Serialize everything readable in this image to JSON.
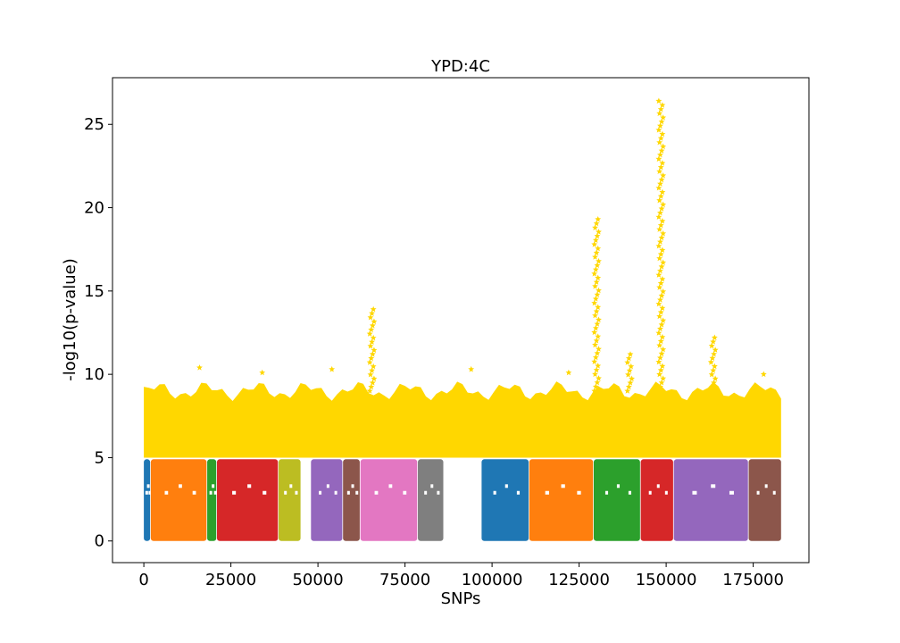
{
  "chart_data": {
    "type": "scatter",
    "title": "YPD:4C",
    "xlabel": "SNPs",
    "ylabel": "-log10(p-value)",
    "xlim": [
      -9000,
      191000
    ],
    "ylim": [
      -1.3,
      27.8
    ],
    "x_ticks": [
      0,
      25000,
      50000,
      75000,
      100000,
      125000,
      150000,
      175000
    ],
    "y_ticks": [
      0,
      5,
      10,
      15,
      20,
      25
    ],
    "grid": false,
    "legend": "none",
    "significance_threshold": 5,
    "highlight_color": "#ffd700",
    "segments": [
      {
        "start": 0,
        "end": 1800,
        "color": "#1f77b4"
      },
      {
        "start": 2000,
        "end": 18000,
        "color": "#ff7f0e"
      },
      {
        "start": 18200,
        "end": 20800,
        "color": "#2ca02c"
      },
      {
        "start": 21000,
        "end": 38500,
        "color": "#d62728"
      },
      {
        "start": 38700,
        "end": 45000,
        "color": "#bcbd22"
      },
      {
        "start": 48000,
        "end": 57000,
        "color": "#9467bd"
      },
      {
        "start": 57200,
        "end": 62000,
        "color": "#8c564b"
      },
      {
        "start": 62200,
        "end": 78500,
        "color": "#e377c2"
      },
      {
        "start": 78700,
        "end": 86000,
        "color": "#7f7f7f"
      },
      {
        "start": 97000,
        "end": 110500,
        "color": "#1f77b4"
      },
      {
        "start": 110700,
        "end": 129000,
        "color": "#ff7f0e"
      },
      {
        "start": 129200,
        "end": 142500,
        "color": "#2ca02c"
      },
      {
        "start": 142700,
        "end": 152000,
        "color": "#d62728"
      },
      {
        "start": 152200,
        "end": 173500,
        "color": "#9467bd"
      },
      {
        "start": 173700,
        "end": 183000,
        "color": "#8c564b"
      }
    ],
    "peaks": [
      {
        "x": 65500,
        "y": 13.9
      },
      {
        "x": 130000,
        "y": 19.3
      },
      {
        "x": 139500,
        "y": 11.2
      },
      {
        "x": 148500,
        "y": 26.4
      },
      {
        "x": 163500,
        "y": 12.2
      }
    ],
    "notable_points": [
      {
        "x": 16000,
        "y": 10.4
      },
      {
        "x": 34000,
        "y": 10.1
      },
      {
        "x": 54000,
        "y": 10.3
      },
      {
        "x": 94000,
        "y": 10.3
      },
      {
        "x": 122000,
        "y": 10.1
      },
      {
        "x": 178000,
        "y": 10.0
      }
    ]
  }
}
